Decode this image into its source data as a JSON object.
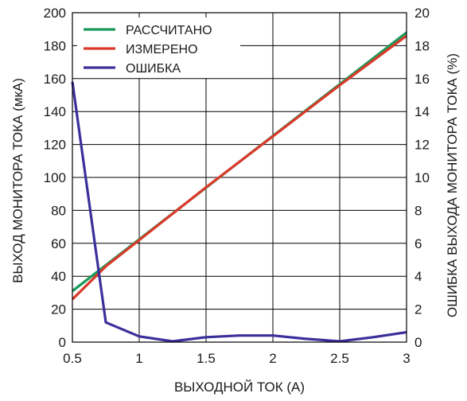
{
  "chart_data": {
    "type": "line",
    "xlabel": "ВЫХОДНОЙ ТОК (А)",
    "ylabel_left": "ВЫХОД МОНИТОРА ТОКА (мкА)",
    "ylabel_right": "ОШИБКА ВЫХОДА МОНИТОРА ТОКА (%)",
    "xlim": [
      0.5,
      3
    ],
    "ylim_left": [
      0,
      200
    ],
    "ylim_right": [
      0,
      20
    ],
    "grid": true,
    "legend_position": "top-left",
    "x_ticks": [
      0.5,
      1,
      1.5,
      2,
      2.5,
      3
    ],
    "x_tick_labels": [
      "0.5",
      "1",
      "1.5",
      "2",
      "2.5",
      "3"
    ],
    "y_left_ticks": [
      0,
      20,
      40,
      60,
      80,
      100,
      120,
      140,
      160,
      180,
      200
    ],
    "y_left_tick_labels": [
      "0",
      "20",
      "40",
      "60",
      "80",
      "100",
      "120",
      "140",
      "160",
      "180",
      "200"
    ],
    "y_right_ticks": [
      0,
      2,
      4,
      6,
      8,
      10,
      12,
      14,
      16,
      18,
      20
    ],
    "y_right_tick_labels": [
      "0",
      "2",
      "4",
      "6",
      "8",
      "10",
      "12",
      "14",
      "16",
      "18",
      "20"
    ],
    "series": [
      {
        "name": "РАССЧИТАНО",
        "axis": "left",
        "color": "#1a9a5a",
        "x": [
          0.5,
          3
        ],
        "y": [
          31,
          188
        ]
      },
      {
        "name": "ИЗМЕРЕНО",
        "axis": "left",
        "color": "#d93a2a",
        "x": [
          0.5,
          0.75,
          1,
          1.5,
          2,
          2.5,
          3
        ],
        "y": [
          26,
          46,
          62,
          94,
          125,
          156,
          186
        ]
      },
      {
        "name": "ОШИБКА",
        "axis": "right",
        "color": "#3b2f9b",
        "x": [
          0.5,
          0.75,
          1,
          1.25,
          1.5,
          1.75,
          2,
          2.25,
          2.5,
          2.75,
          3
        ],
        "y": [
          15.8,
          1.2,
          0.35,
          0.05,
          0.3,
          0.4,
          0.4,
          0.2,
          0.05,
          0.3,
          0.6
        ]
      }
    ]
  }
}
